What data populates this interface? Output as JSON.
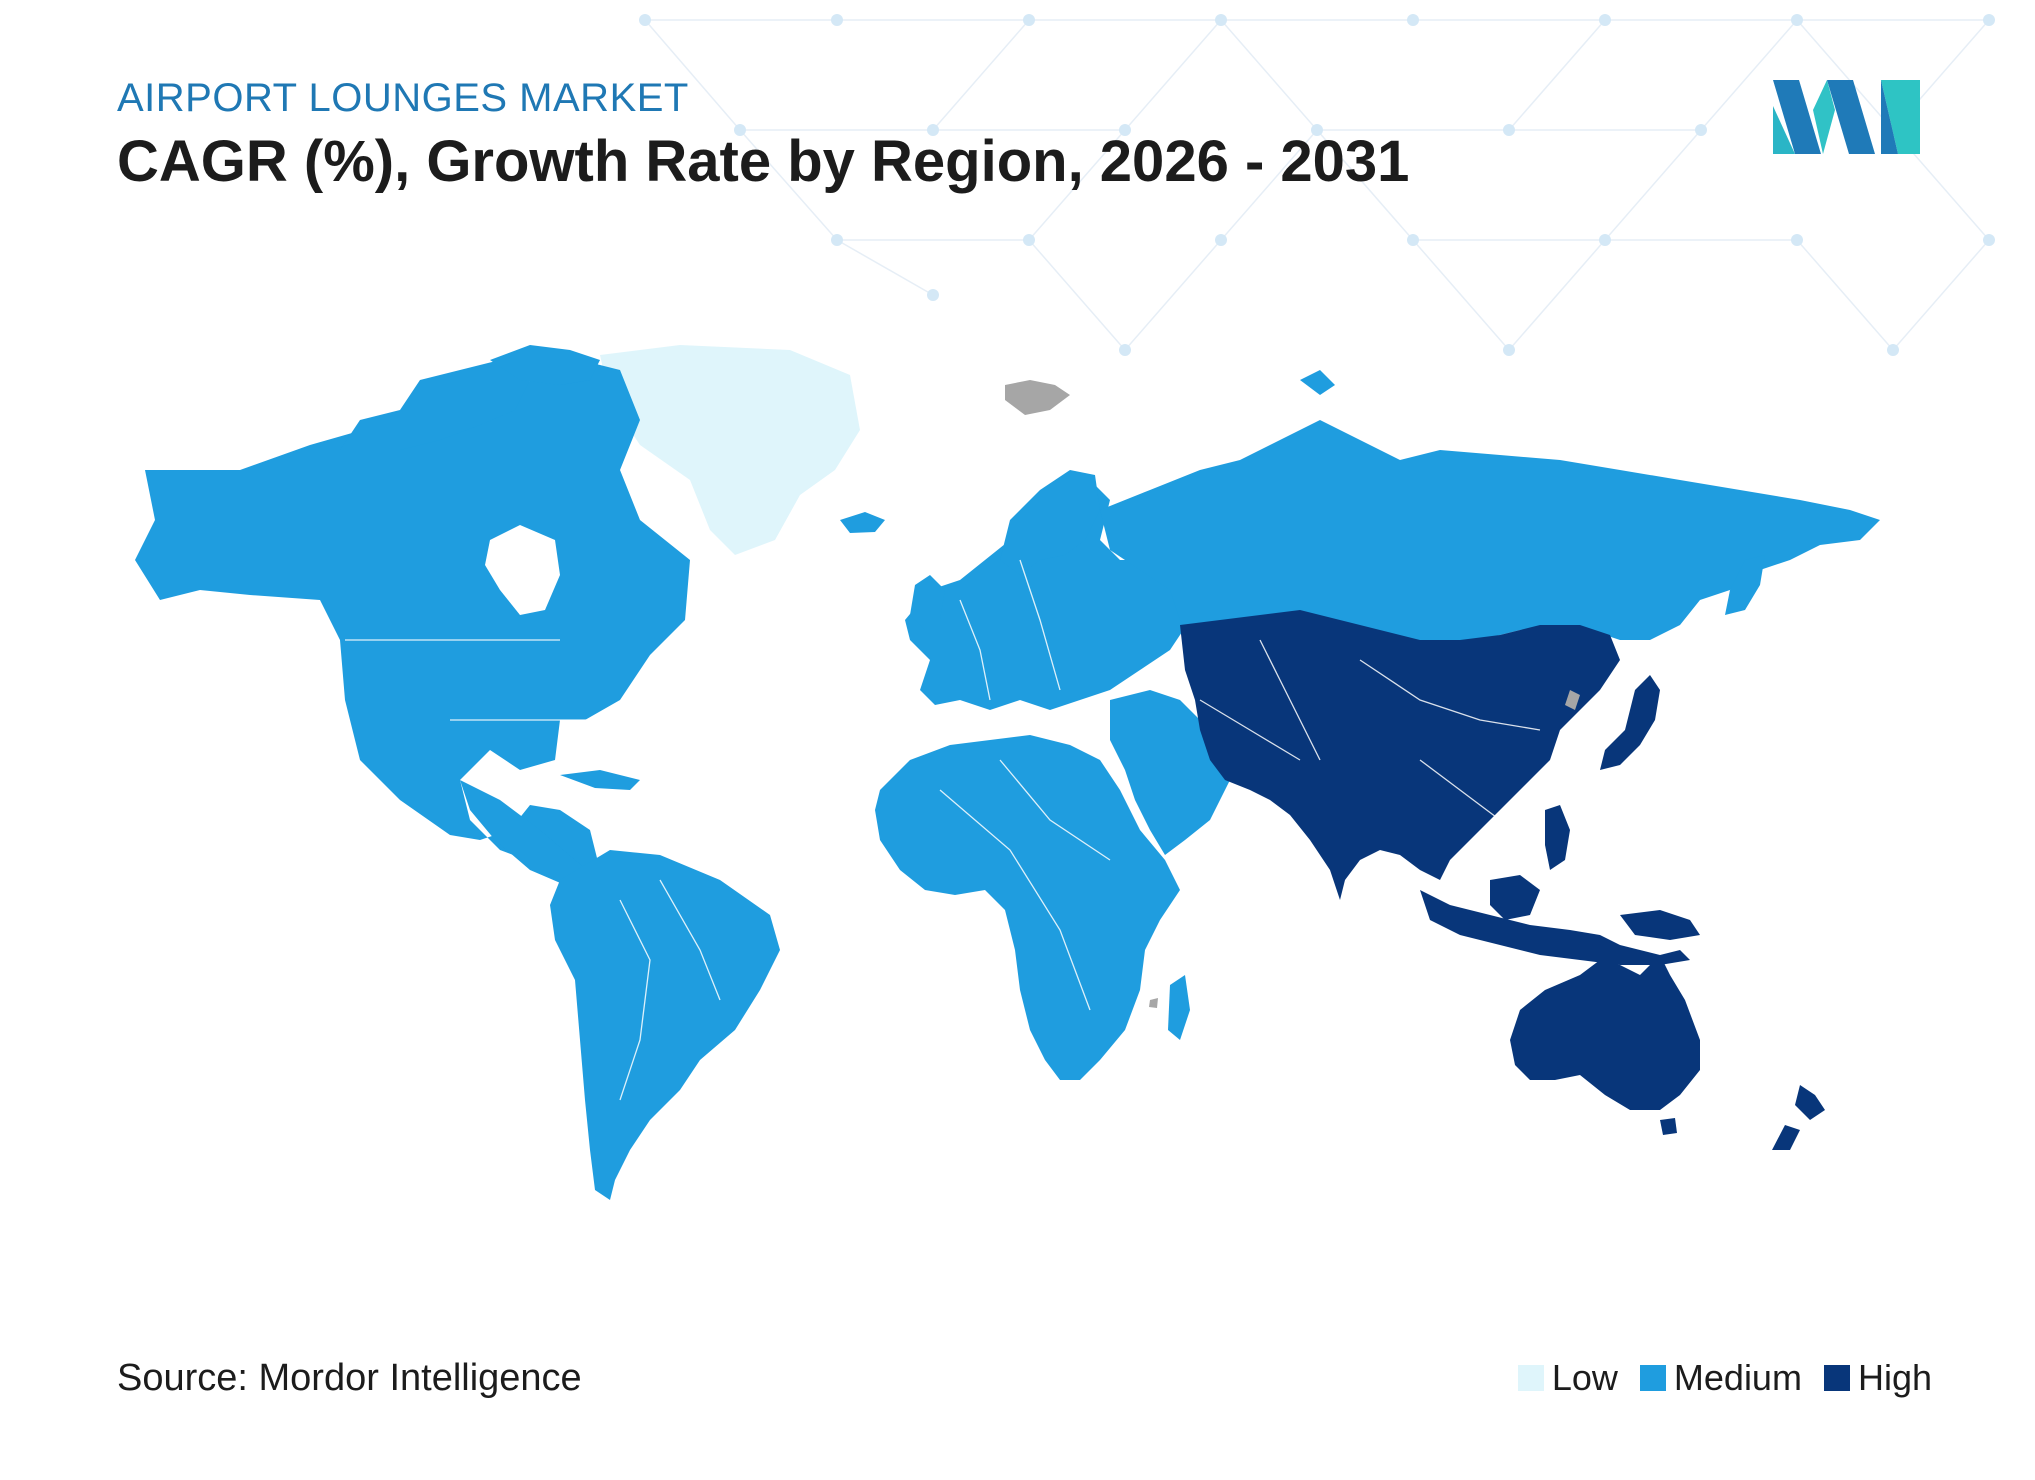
{
  "header": {
    "subtitle": "AIRPORT LOUNGES MARKET",
    "title": "CAGR (%), Growth Rate by Region, 2026 - 2031"
  },
  "brand": {
    "logo_icon": "mordor-intelligence-logo-icon"
  },
  "footer": {
    "source": "Source: Mordor Intelligence"
  },
  "legend": {
    "items": [
      {
        "label": "Low",
        "color": "#dff5fb"
      },
      {
        "label": "Medium",
        "color": "#1f9ddf"
      },
      {
        "label": "High",
        "color": "#08367a"
      }
    ]
  },
  "map_regions": [
    {
      "region": "North America",
      "level": "Medium"
    },
    {
      "region": "South America",
      "level": "Medium"
    },
    {
      "region": "Europe",
      "level": "Medium"
    },
    {
      "region": "Africa",
      "level": "Medium"
    },
    {
      "region": "Middle East",
      "level": "Medium"
    },
    {
      "region": "Russia",
      "level": "Medium"
    },
    {
      "region": "Greenland",
      "level": "Low"
    },
    {
      "region": "Asia-Pacific",
      "level": "High"
    },
    {
      "region": "Australia and New Zealand",
      "level": "High"
    }
  ],
  "colors": {
    "low": "#dff5fb",
    "medium": "#1f9ddf",
    "high": "#08367a",
    "no_data": "#a6a6a6",
    "subtitle": "#1f78b4",
    "title": "#1c1c1c"
  }
}
